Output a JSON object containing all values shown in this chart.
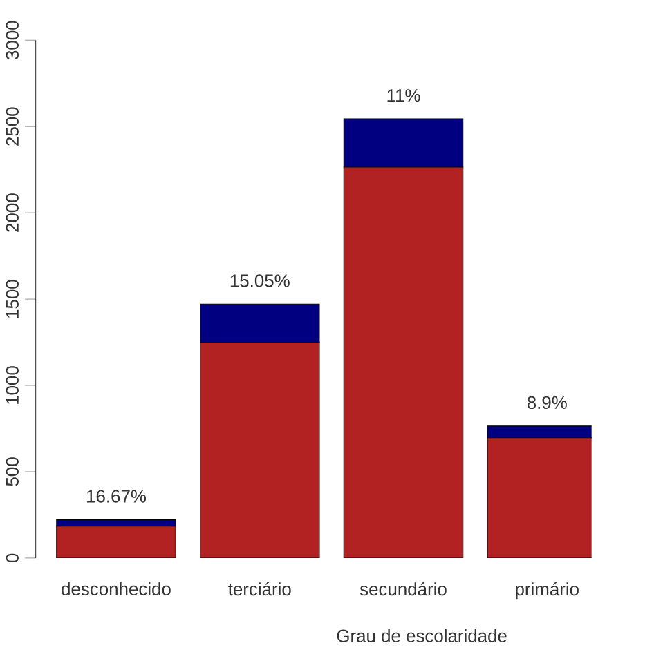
{
  "chart_data": {
    "type": "bar",
    "stacked": true,
    "xlabel": "Grau de escolaridade",
    "categories": [
      "desconhecido",
      "terciário",
      "secundário",
      "primário"
    ],
    "series": [
      {
        "color": "#b22222",
        "values": [
          185,
          1250,
          2265,
          697
        ]
      },
      {
        "color": "#000080",
        "values": [
          37,
          221,
          280,
          68
        ]
      }
    ],
    "annotations": [
      {
        "text": "16.67%",
        "x": "desconhecido",
        "y": 222
      },
      {
        "text": "15.05%",
        "x": "terciário",
        "y": 1471
      },
      {
        "text": "11%",
        "x": "secundário",
        "y": 2545
      },
      {
        "text": "8.9%",
        "x": "primário",
        "y": 765
      }
    ],
    "ylim": [
      0,
      3000
    ],
    "yticks": [
      0,
      500,
      1000,
      1500,
      2000,
      2500,
      3000
    ]
  }
}
